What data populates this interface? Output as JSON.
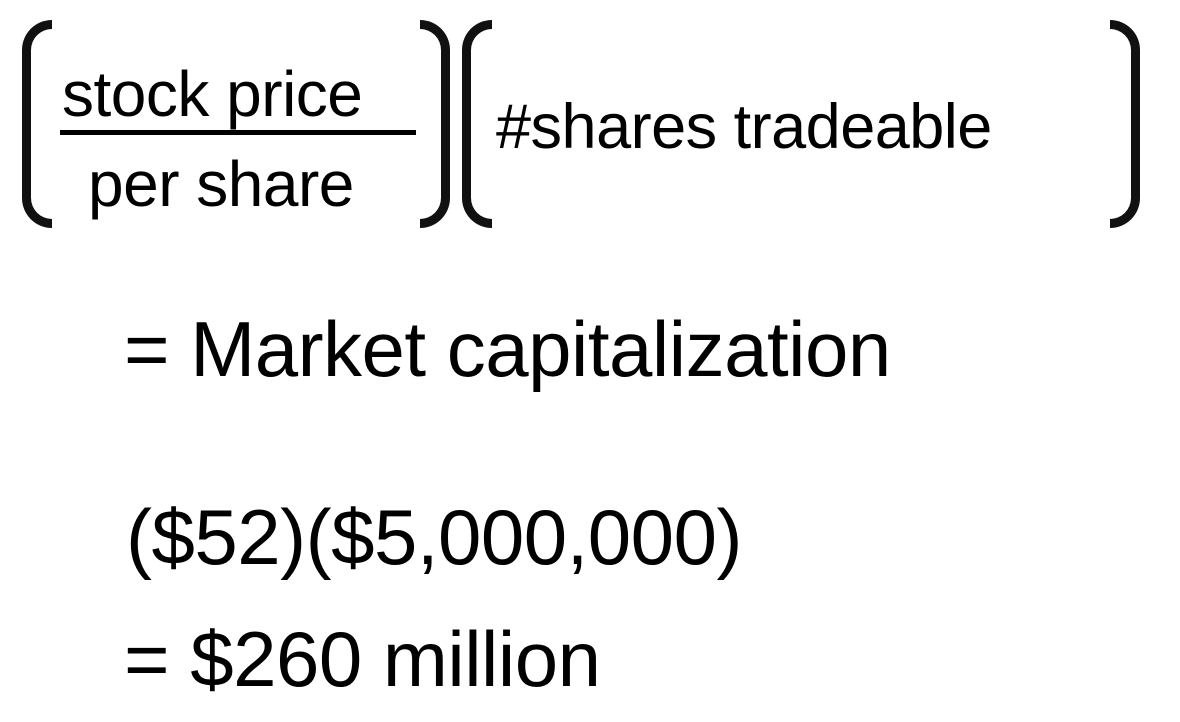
{
  "formula": {
    "numerator": "stock price",
    "denominator": "per share",
    "second_factor": "#shares tradeable",
    "result_line": "= Market capitalization"
  },
  "example": {
    "product_line": "($52)($5,000,000)",
    "answer_line": "= $260 million"
  }
}
